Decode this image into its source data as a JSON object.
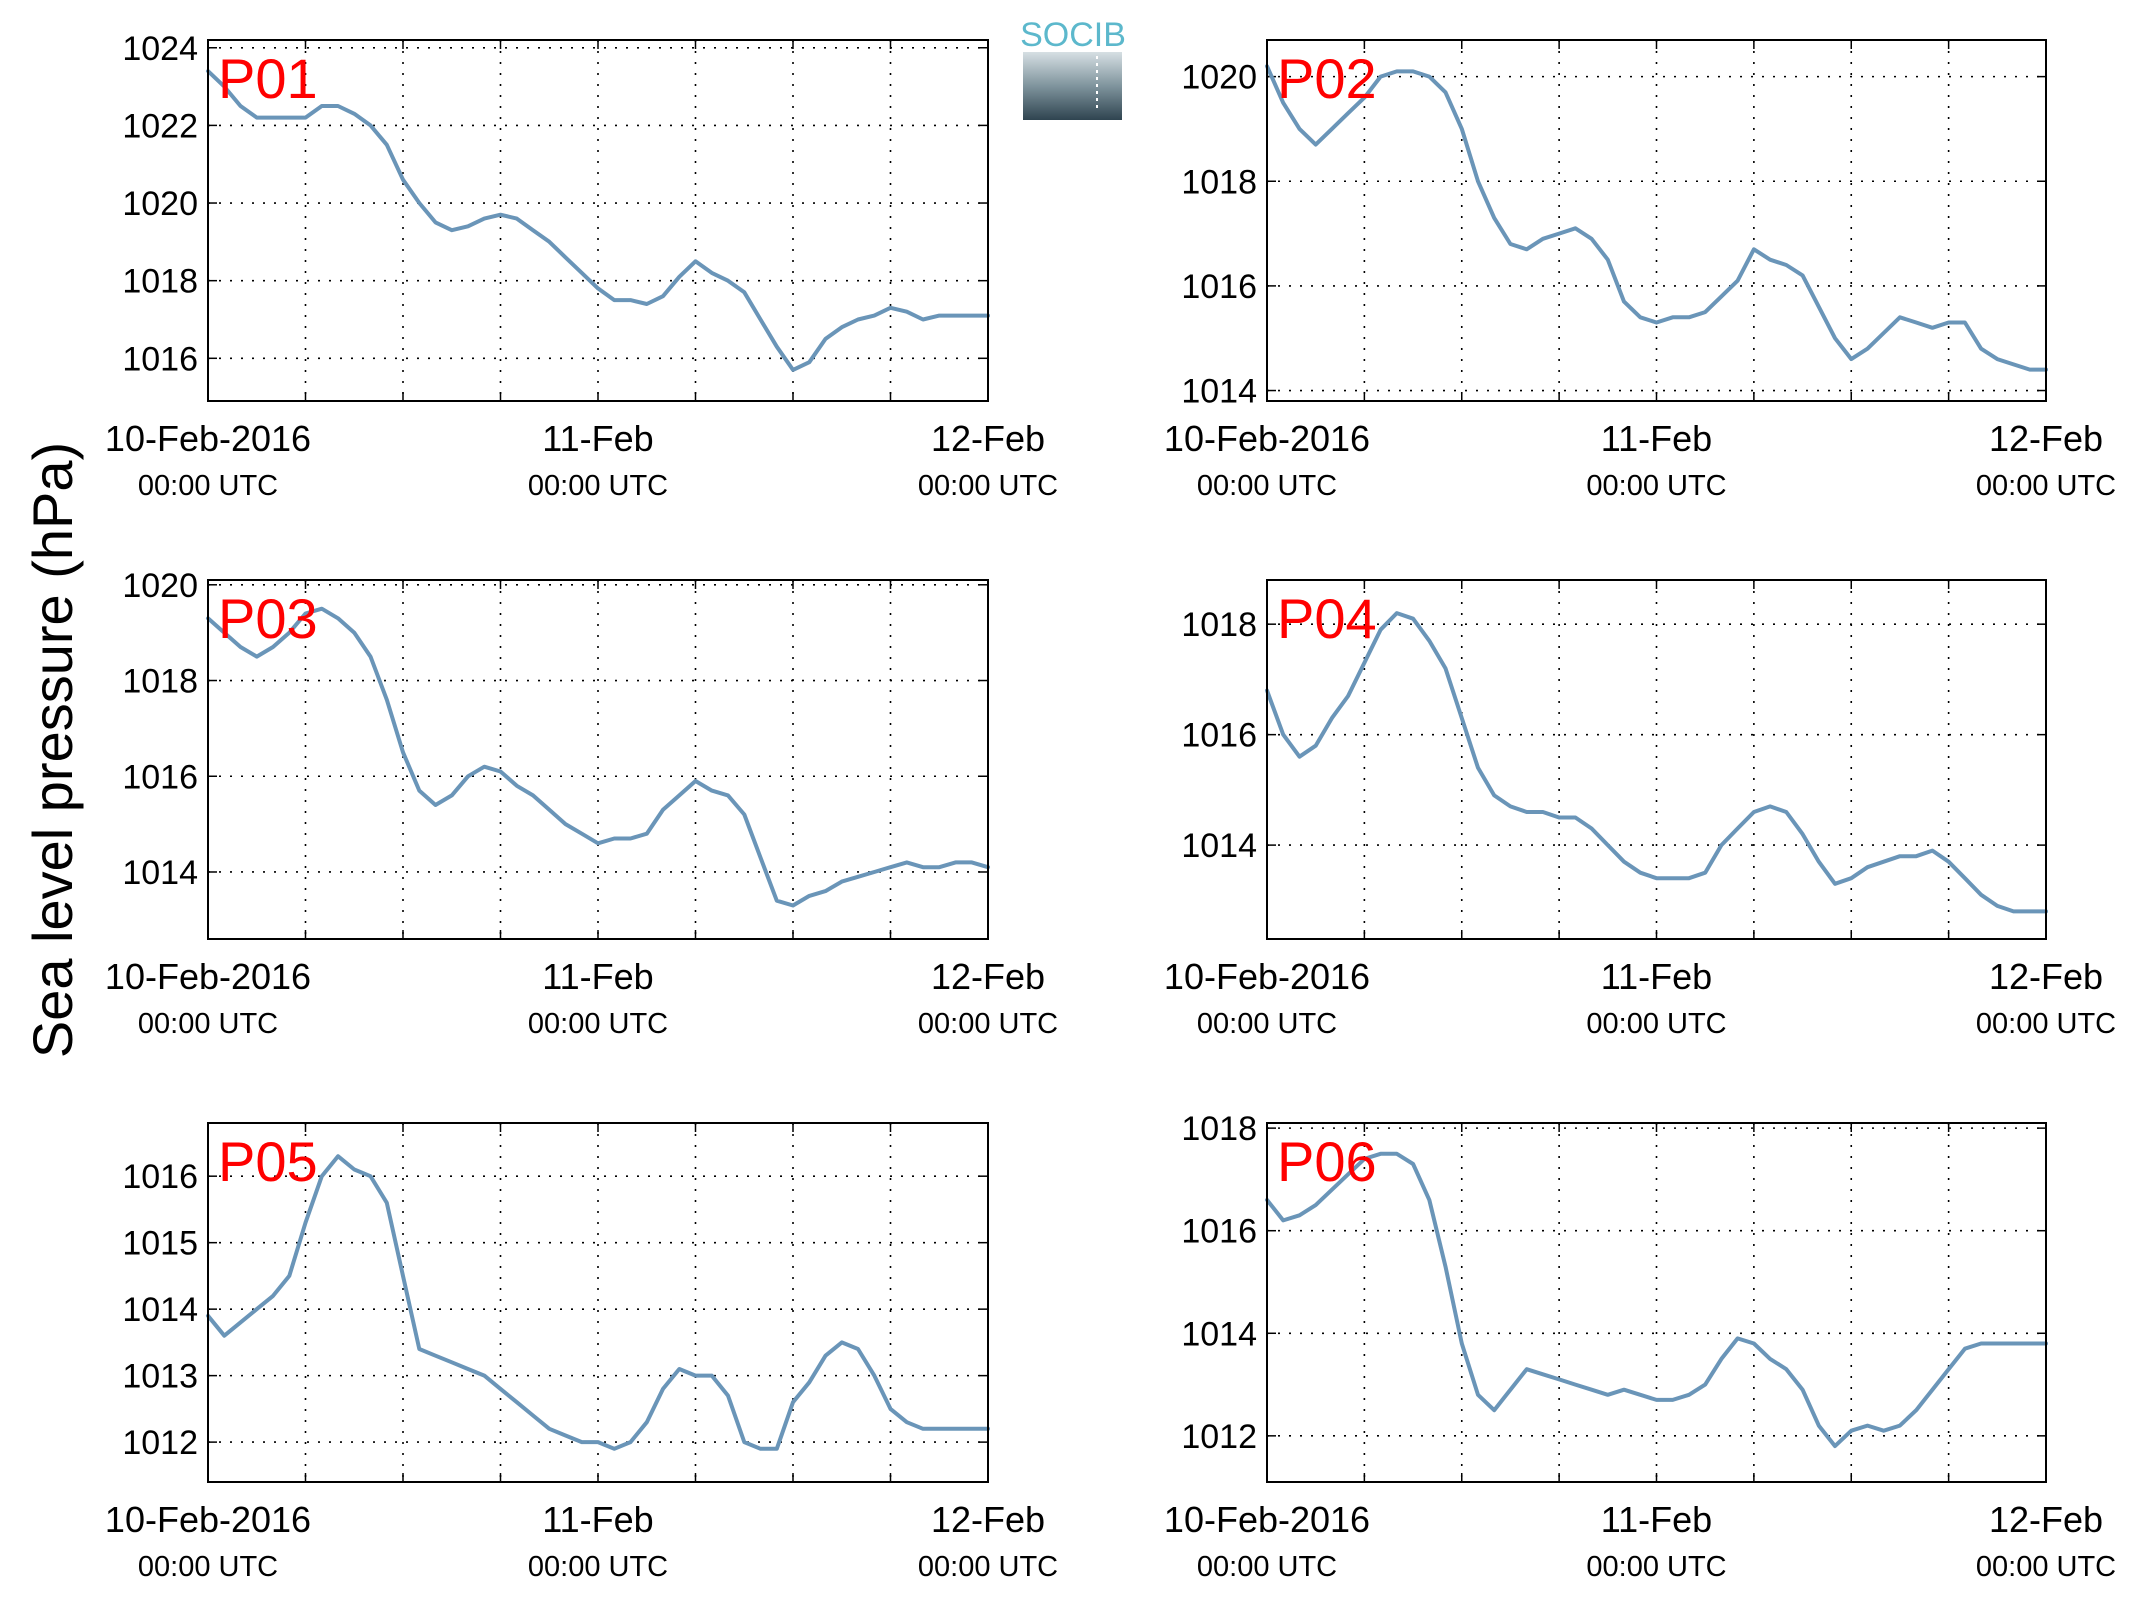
{
  "figure": {
    "ylabel": "Sea level pressure (hPa)",
    "logo_text": "SOCIB",
    "line_color": "#6a95b8",
    "label_color": "#ff0000",
    "x_tick_labels": [
      {
        "date": "10-Feb-2016",
        "time": "00:00 UTC"
      },
      {
        "date": "11-Feb",
        "time": "00:00 UTC"
      },
      {
        "date": "12-Feb",
        "time": "00:00 UTC"
      }
    ]
  },
  "chart_data": [
    {
      "type": "line",
      "label": "P01",
      "x_unit": "hours since 10-Feb-2016 00:00 UTC",
      "xlim": [
        0,
        48
      ],
      "ylim": [
        1014.9,
        1024.2
      ],
      "yticks": [
        1016,
        1018,
        1020,
        1022,
        1024
      ],
      "x": [
        0,
        1,
        2,
        3,
        4,
        5,
        6,
        7,
        8,
        9,
        10,
        11,
        12,
        13,
        14,
        15,
        16,
        17,
        18,
        19,
        20,
        21,
        22,
        23,
        24,
        25,
        26,
        27,
        28,
        29,
        30,
        31,
        32,
        33,
        34,
        35,
        36,
        37,
        38,
        39,
        40,
        41,
        42,
        43,
        44,
        45,
        46,
        47,
        48
      ],
      "values": [
        1023.4,
        1023.0,
        1022.5,
        1022.2,
        1022.2,
        1022.2,
        1022.2,
        1022.5,
        1022.5,
        1022.3,
        1022.0,
        1021.5,
        1020.6,
        1020.0,
        1019.5,
        1019.3,
        1019.4,
        1019.6,
        1019.7,
        1019.6,
        1019.3,
        1019.0,
        1018.6,
        1018.2,
        1017.8,
        1017.5,
        1017.5,
        1017.4,
        1017.6,
        1018.1,
        1018.5,
        1018.2,
        1018.0,
        1017.7,
        1017.0,
        1016.3,
        1015.7,
        1015.9,
        1016.5,
        1016.8,
        1017.0,
        1017.1,
        1017.3,
        1017.2,
        1017.0,
        1017.1,
        1017.1,
        1017.1,
        1017.1
      ]
    },
    {
      "type": "line",
      "label": "P02",
      "x_unit": "hours since 10-Feb-2016 00:00 UTC",
      "xlim": [
        0,
        48
      ],
      "ylim": [
        1013.8,
        1020.7
      ],
      "yticks": [
        1014,
        1016,
        1018,
        1020
      ],
      "x": [
        0,
        1,
        2,
        3,
        4,
        5,
        6,
        7,
        8,
        9,
        10,
        11,
        12,
        13,
        14,
        15,
        16,
        17,
        18,
        19,
        20,
        21,
        22,
        23,
        24,
        25,
        26,
        27,
        28,
        29,
        30,
        31,
        32,
        33,
        34,
        35,
        36,
        37,
        38,
        39,
        40,
        41,
        42,
        43,
        44,
        45,
        46,
        47,
        48
      ],
      "values": [
        1020.2,
        1019.5,
        1019.0,
        1018.7,
        1019.0,
        1019.3,
        1019.6,
        1020.0,
        1020.1,
        1020.1,
        1020.0,
        1019.7,
        1019.0,
        1018.0,
        1017.3,
        1016.8,
        1016.7,
        1016.9,
        1017.0,
        1017.1,
        1016.9,
        1016.5,
        1015.7,
        1015.4,
        1015.3,
        1015.4,
        1015.4,
        1015.5,
        1015.8,
        1016.1,
        1016.7,
        1016.5,
        1016.4,
        1016.2,
        1015.6,
        1015.0,
        1014.6,
        1014.8,
        1015.1,
        1015.4,
        1015.3,
        1015.2,
        1015.3,
        1015.3,
        1014.8,
        1014.6,
        1014.5,
        1014.4,
        1014.4
      ]
    },
    {
      "type": "line",
      "label": "P03",
      "x_unit": "hours since 10-Feb-2016 00:00 UTC",
      "xlim": [
        0,
        48
      ],
      "ylim": [
        1012.6,
        1020.1
      ],
      "yticks": [
        1014,
        1016,
        1018,
        1020
      ],
      "x": [
        0,
        1,
        2,
        3,
        4,
        5,
        6,
        7,
        8,
        9,
        10,
        11,
        12,
        13,
        14,
        15,
        16,
        17,
        18,
        19,
        20,
        21,
        22,
        23,
        24,
        25,
        26,
        27,
        28,
        29,
        30,
        31,
        32,
        33,
        34,
        35,
        36,
        37,
        38,
        39,
        40,
        41,
        42,
        43,
        44,
        45,
        46,
        47,
        48
      ],
      "values": [
        1019.3,
        1019.0,
        1018.7,
        1018.5,
        1018.7,
        1019.0,
        1019.4,
        1019.5,
        1019.3,
        1019.0,
        1018.5,
        1017.6,
        1016.5,
        1015.7,
        1015.4,
        1015.6,
        1016.0,
        1016.2,
        1016.1,
        1015.8,
        1015.6,
        1015.3,
        1015.0,
        1014.8,
        1014.6,
        1014.7,
        1014.7,
        1014.8,
        1015.3,
        1015.6,
        1015.9,
        1015.7,
        1015.6,
        1015.2,
        1014.3,
        1013.4,
        1013.3,
        1013.5,
        1013.6,
        1013.8,
        1013.9,
        1014.0,
        1014.1,
        1014.2,
        1014.1,
        1014.1,
        1014.2,
        1014.2,
        1014.1
      ]
    },
    {
      "type": "line",
      "label": "P04",
      "x_unit": "hours since 10-Feb-2016 00:00 UTC",
      "xlim": [
        0,
        48
      ],
      "ylim": [
        1012.3,
        1018.8
      ],
      "yticks": [
        1014,
        1016,
        1018
      ],
      "x": [
        0,
        1,
        2,
        3,
        4,
        5,
        6,
        7,
        8,
        9,
        10,
        11,
        12,
        13,
        14,
        15,
        16,
        17,
        18,
        19,
        20,
        21,
        22,
        23,
        24,
        25,
        26,
        27,
        28,
        29,
        30,
        31,
        32,
        33,
        34,
        35,
        36,
        37,
        38,
        39,
        40,
        41,
        42,
        43,
        44,
        45,
        46,
        47,
        48
      ],
      "values": [
        1016.8,
        1016.0,
        1015.6,
        1015.8,
        1016.3,
        1016.7,
        1017.3,
        1017.9,
        1018.2,
        1018.1,
        1017.7,
        1017.2,
        1016.3,
        1015.4,
        1014.9,
        1014.7,
        1014.6,
        1014.6,
        1014.5,
        1014.5,
        1014.3,
        1014.0,
        1013.7,
        1013.5,
        1013.4,
        1013.4,
        1013.4,
        1013.5,
        1014.0,
        1014.3,
        1014.6,
        1014.7,
        1014.6,
        1014.2,
        1013.7,
        1013.3,
        1013.4,
        1013.6,
        1013.7,
        1013.8,
        1013.8,
        1013.9,
        1013.7,
        1013.4,
        1013.1,
        1012.9,
        1012.8,
        1012.8,
        1012.8
      ]
    },
    {
      "type": "line",
      "label": "P05",
      "x_unit": "hours since 10-Feb-2016 00:00 UTC",
      "xlim": [
        0,
        48
      ],
      "ylim": [
        1011.4,
        1016.8
      ],
      "yticks": [
        1012,
        1013,
        1014,
        1015,
        1016
      ],
      "x": [
        0,
        1,
        2,
        3,
        4,
        5,
        6,
        7,
        8,
        9,
        10,
        11,
        12,
        13,
        14,
        15,
        16,
        17,
        18,
        19,
        20,
        21,
        22,
        23,
        24,
        25,
        26,
        27,
        28,
        29,
        30,
        31,
        32,
        33,
        34,
        35,
        36,
        37,
        38,
        39,
        40,
        41,
        42,
        43,
        44,
        45,
        46,
        47,
        48
      ],
      "values": [
        1013.9,
        1013.6,
        1013.8,
        1014.0,
        1014.2,
        1014.5,
        1015.3,
        1016.0,
        1016.3,
        1016.1,
        1016.0,
        1015.6,
        1014.5,
        1013.4,
        1013.3,
        1013.2,
        1013.1,
        1013.0,
        1012.8,
        1012.6,
        1012.4,
        1012.2,
        1012.1,
        1012.0,
        1012.0,
        1011.9,
        1012.0,
        1012.3,
        1012.8,
        1013.1,
        1013.0,
        1013.0,
        1012.7,
        1012.0,
        1011.9,
        1011.9,
        1012.6,
        1012.9,
        1013.3,
        1013.5,
        1013.4,
        1013.0,
        1012.5,
        1012.3,
        1012.2,
        1012.2,
        1012.2,
        1012.2,
        1012.2
      ]
    },
    {
      "type": "line",
      "label": "P06",
      "x_unit": "hours since 10-Feb-2016 00:00 UTC",
      "xlim": [
        0,
        48
      ],
      "ylim": [
        1011.1,
        1018.1
      ],
      "yticks": [
        1012,
        1014,
        1016,
        1018
      ],
      "x": [
        0,
        1,
        2,
        3,
        4,
        5,
        6,
        7,
        8,
        9,
        10,
        11,
        12,
        13,
        14,
        15,
        16,
        17,
        18,
        19,
        20,
        21,
        22,
        23,
        24,
        25,
        26,
        27,
        28,
        29,
        30,
        31,
        32,
        33,
        34,
        35,
        36,
        37,
        38,
        39,
        40,
        41,
        42,
        43,
        44,
        45,
        46,
        47,
        48
      ],
      "values": [
        1016.6,
        1016.2,
        1016.3,
        1016.5,
        1016.8,
        1017.1,
        1017.4,
        1017.5,
        1017.5,
        1017.3,
        1016.6,
        1015.3,
        1013.8,
        1012.8,
        1012.5,
        1012.9,
        1013.3,
        1013.2,
        1013.1,
        1013.0,
        1012.9,
        1012.8,
        1012.9,
        1012.8,
        1012.7,
        1012.7,
        1012.8,
        1013.0,
        1013.5,
        1013.9,
        1013.8,
        1013.5,
        1013.3,
        1012.9,
        1012.2,
        1011.8,
        1012.1,
        1012.2,
        1012.1,
        1012.2,
        1012.5,
        1012.9,
        1013.3,
        1013.7,
        1013.8,
        1013.8,
        1013.8,
        1013.8,
        1013.8
      ]
    }
  ]
}
